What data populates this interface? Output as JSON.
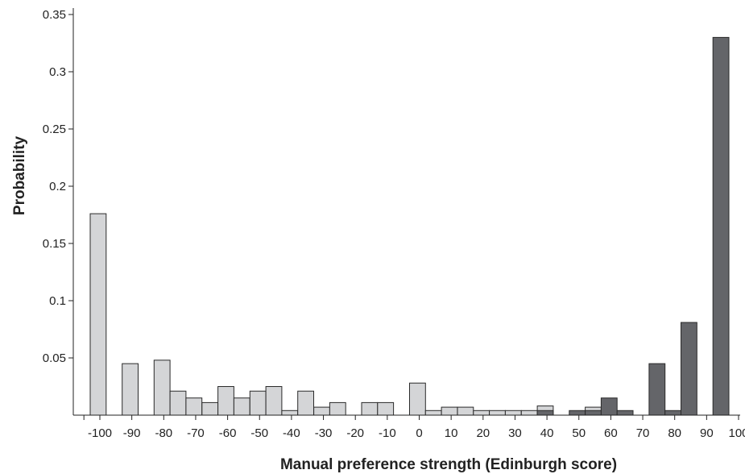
{
  "chart_data": {
    "type": "bar",
    "title": "",
    "xlabel": "Manual preference strength (Edinburgh score)",
    "ylabel": "Probability",
    "xlim": [
      -105,
      105
    ],
    "ylim": [
      0,
      0.35
    ],
    "x_ticks": [
      -100,
      -90,
      -80,
      -70,
      -60,
      -50,
      -40,
      -30,
      -20,
      -10,
      0,
      10,
      20,
      30,
      40,
      50,
      60,
      70,
      80,
      90,
      100
    ],
    "y_ticks": [
      0.05,
      0.1,
      0.15,
      0.2,
      0.25,
      0.3,
      0.35
    ],
    "y_tick_labels": [
      "0.05",
      "0.1",
      "0.15",
      "0.2",
      "0.25",
      "0.3",
      "0.35"
    ],
    "grid": false,
    "legend": "none",
    "colors": {
      "light": "#d4d5d7",
      "dark": "#646569",
      "stroke": "#2a2a2a"
    },
    "series": [
      {
        "color": "#d4d5d7",
        "bins": [
          {
            "x": -100,
            "y": 0.176
          },
          {
            "x": -90,
            "y": 0.045
          },
          {
            "x": -80,
            "y": 0.048
          },
          {
            "x": -75,
            "y": 0.021
          },
          {
            "x": -70,
            "y": 0.015
          },
          {
            "x": -65,
            "y": 0.011
          },
          {
            "x": -60,
            "y": 0.025
          },
          {
            "x": -55,
            "y": 0.015
          },
          {
            "x": -50,
            "y": 0.021
          },
          {
            "x": -45,
            "y": 0.025
          },
          {
            "x": -40,
            "y": 0.004
          },
          {
            "x": -35,
            "y": 0.021
          },
          {
            "x": -30,
            "y": 0.007
          },
          {
            "x": -25,
            "y": 0.011
          },
          {
            "x": -15,
            "y": 0.011
          },
          {
            "x": -10,
            "y": 0.011
          },
          {
            "x": 0,
            "y": 0.028
          },
          {
            "x": 5,
            "y": 0.004
          },
          {
            "x": 10,
            "y": 0.007
          },
          {
            "x": 15,
            "y": 0.007
          },
          {
            "x": 20,
            "y": 0.004
          },
          {
            "x": 25,
            "y": 0.004
          },
          {
            "x": 30,
            "y": 0.004
          },
          {
            "x": 35,
            "y": 0.004
          },
          {
            "x": 40,
            "y": 0.008
          },
          {
            "x": 55,
            "y": 0.007
          }
        ]
      },
      {
        "color": "#646569",
        "bins": [
          {
            "x": 40,
            "y": 0.004
          },
          {
            "x": 50,
            "y": 0.004
          },
          {
            "x": 55,
            "y": 0.004
          },
          {
            "x": 60,
            "y": 0.015
          },
          {
            "x": 65,
            "y": 0.004
          },
          {
            "x": 75,
            "y": 0.045
          },
          {
            "x": 80,
            "y": 0.004
          },
          {
            "x": 85,
            "y": 0.081
          },
          {
            "x": 95,
            "y": 0.33
          }
        ]
      }
    ]
  }
}
